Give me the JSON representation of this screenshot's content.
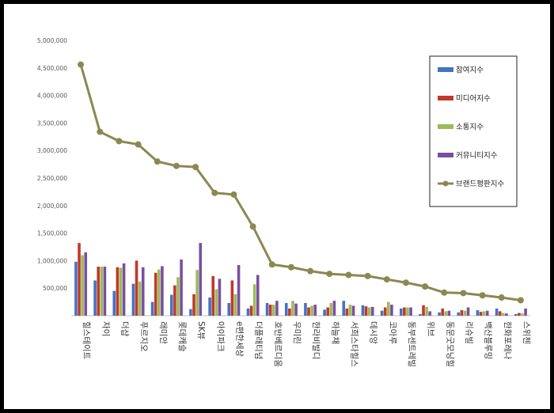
{
  "chart_data": {
    "type": "bar",
    "title": "",
    "xlabel": "",
    "ylabel": "",
    "ylim": [
      0,
      5000000
    ],
    "yticks": [
      "5,000,000",
      "4,500,000",
      "4,000,000",
      "3,500,000",
      "3,000,000",
      "2,500,000",
      "2,000,000",
      "1,500,000",
      "1,000,000",
      "500,000",
      ""
    ],
    "categories": [
      "힐스테이트",
      "자이",
      "더샵",
      "푸르지오",
      "래미안",
      "롯데캐슬",
      "SK뷰",
      "아이파크",
      "e편한세상",
      "더플래티넘",
      "호반베르디움",
      "우미린",
      "한라비발디",
      "하늘채",
      "서희스타힐스",
      "데시앙",
      "코아루",
      "동부센트레빌",
      "위브",
      "동문굿모닝힐",
      "리슈빌",
      "백산블루밍",
      "한화포레나",
      "스위첸"
    ],
    "series": [
      {
        "name": "참여지수",
        "color": "#4472c4",
        "values": [
          980000,
          640000,
          450000,
          580000,
          250000,
          380000,
          120000,
          330000,
          230000,
          130000,
          230000,
          230000,
          230000,
          110000,
          270000,
          190000,
          90000,
          130000,
          30000,
          60000,
          60000,
          100000,
          130000,
          30000
        ]
      },
      {
        "name": "미디어지수",
        "color": "#c0392b",
        "values": [
          1320000,
          890000,
          880000,
          1000000,
          780000,
          550000,
          390000,
          720000,
          640000,
          180000,
          200000,
          130000,
          150000,
          150000,
          130000,
          170000,
          150000,
          150000,
          190000,
          130000,
          100000,
          70000,
          80000,
          50000
        ]
      },
      {
        "name": "소통지수",
        "color": "#9bbb59",
        "values": [
          1100000,
          890000,
          870000,
          620000,
          840000,
          700000,
          830000,
          480000,
          390000,
          570000,
          200000,
          270000,
          180000,
          230000,
          200000,
          150000,
          250000,
          150000,
          160000,
          80000,
          90000,
          80000,
          50000,
          40000
        ]
      },
      {
        "name": "커뮤니티지수",
        "color": "#7b4fa0",
        "values": [
          1150000,
          890000,
          950000,
          880000,
          900000,
          1020000,
          1320000,
          670000,
          920000,
          740000,
          270000,
          220000,
          200000,
          270000,
          180000,
          160000,
          200000,
          150000,
          80000,
          90000,
          150000,
          90000,
          40000,
          130000
        ]
      },
      {
        "name": "브랜드평판지수",
        "color": "#8b8852",
        "type": "line",
        "values": [
          4560000,
          3340000,
          3170000,
          3110000,
          2800000,
          2720000,
          2700000,
          2230000,
          2200000,
          1620000,
          930000,
          880000,
          810000,
          760000,
          740000,
          720000,
          660000,
          600000,
          530000,
          420000,
          410000,
          370000,
          330000,
          280000
        ]
      }
    ],
    "legend_position": "top-right"
  }
}
